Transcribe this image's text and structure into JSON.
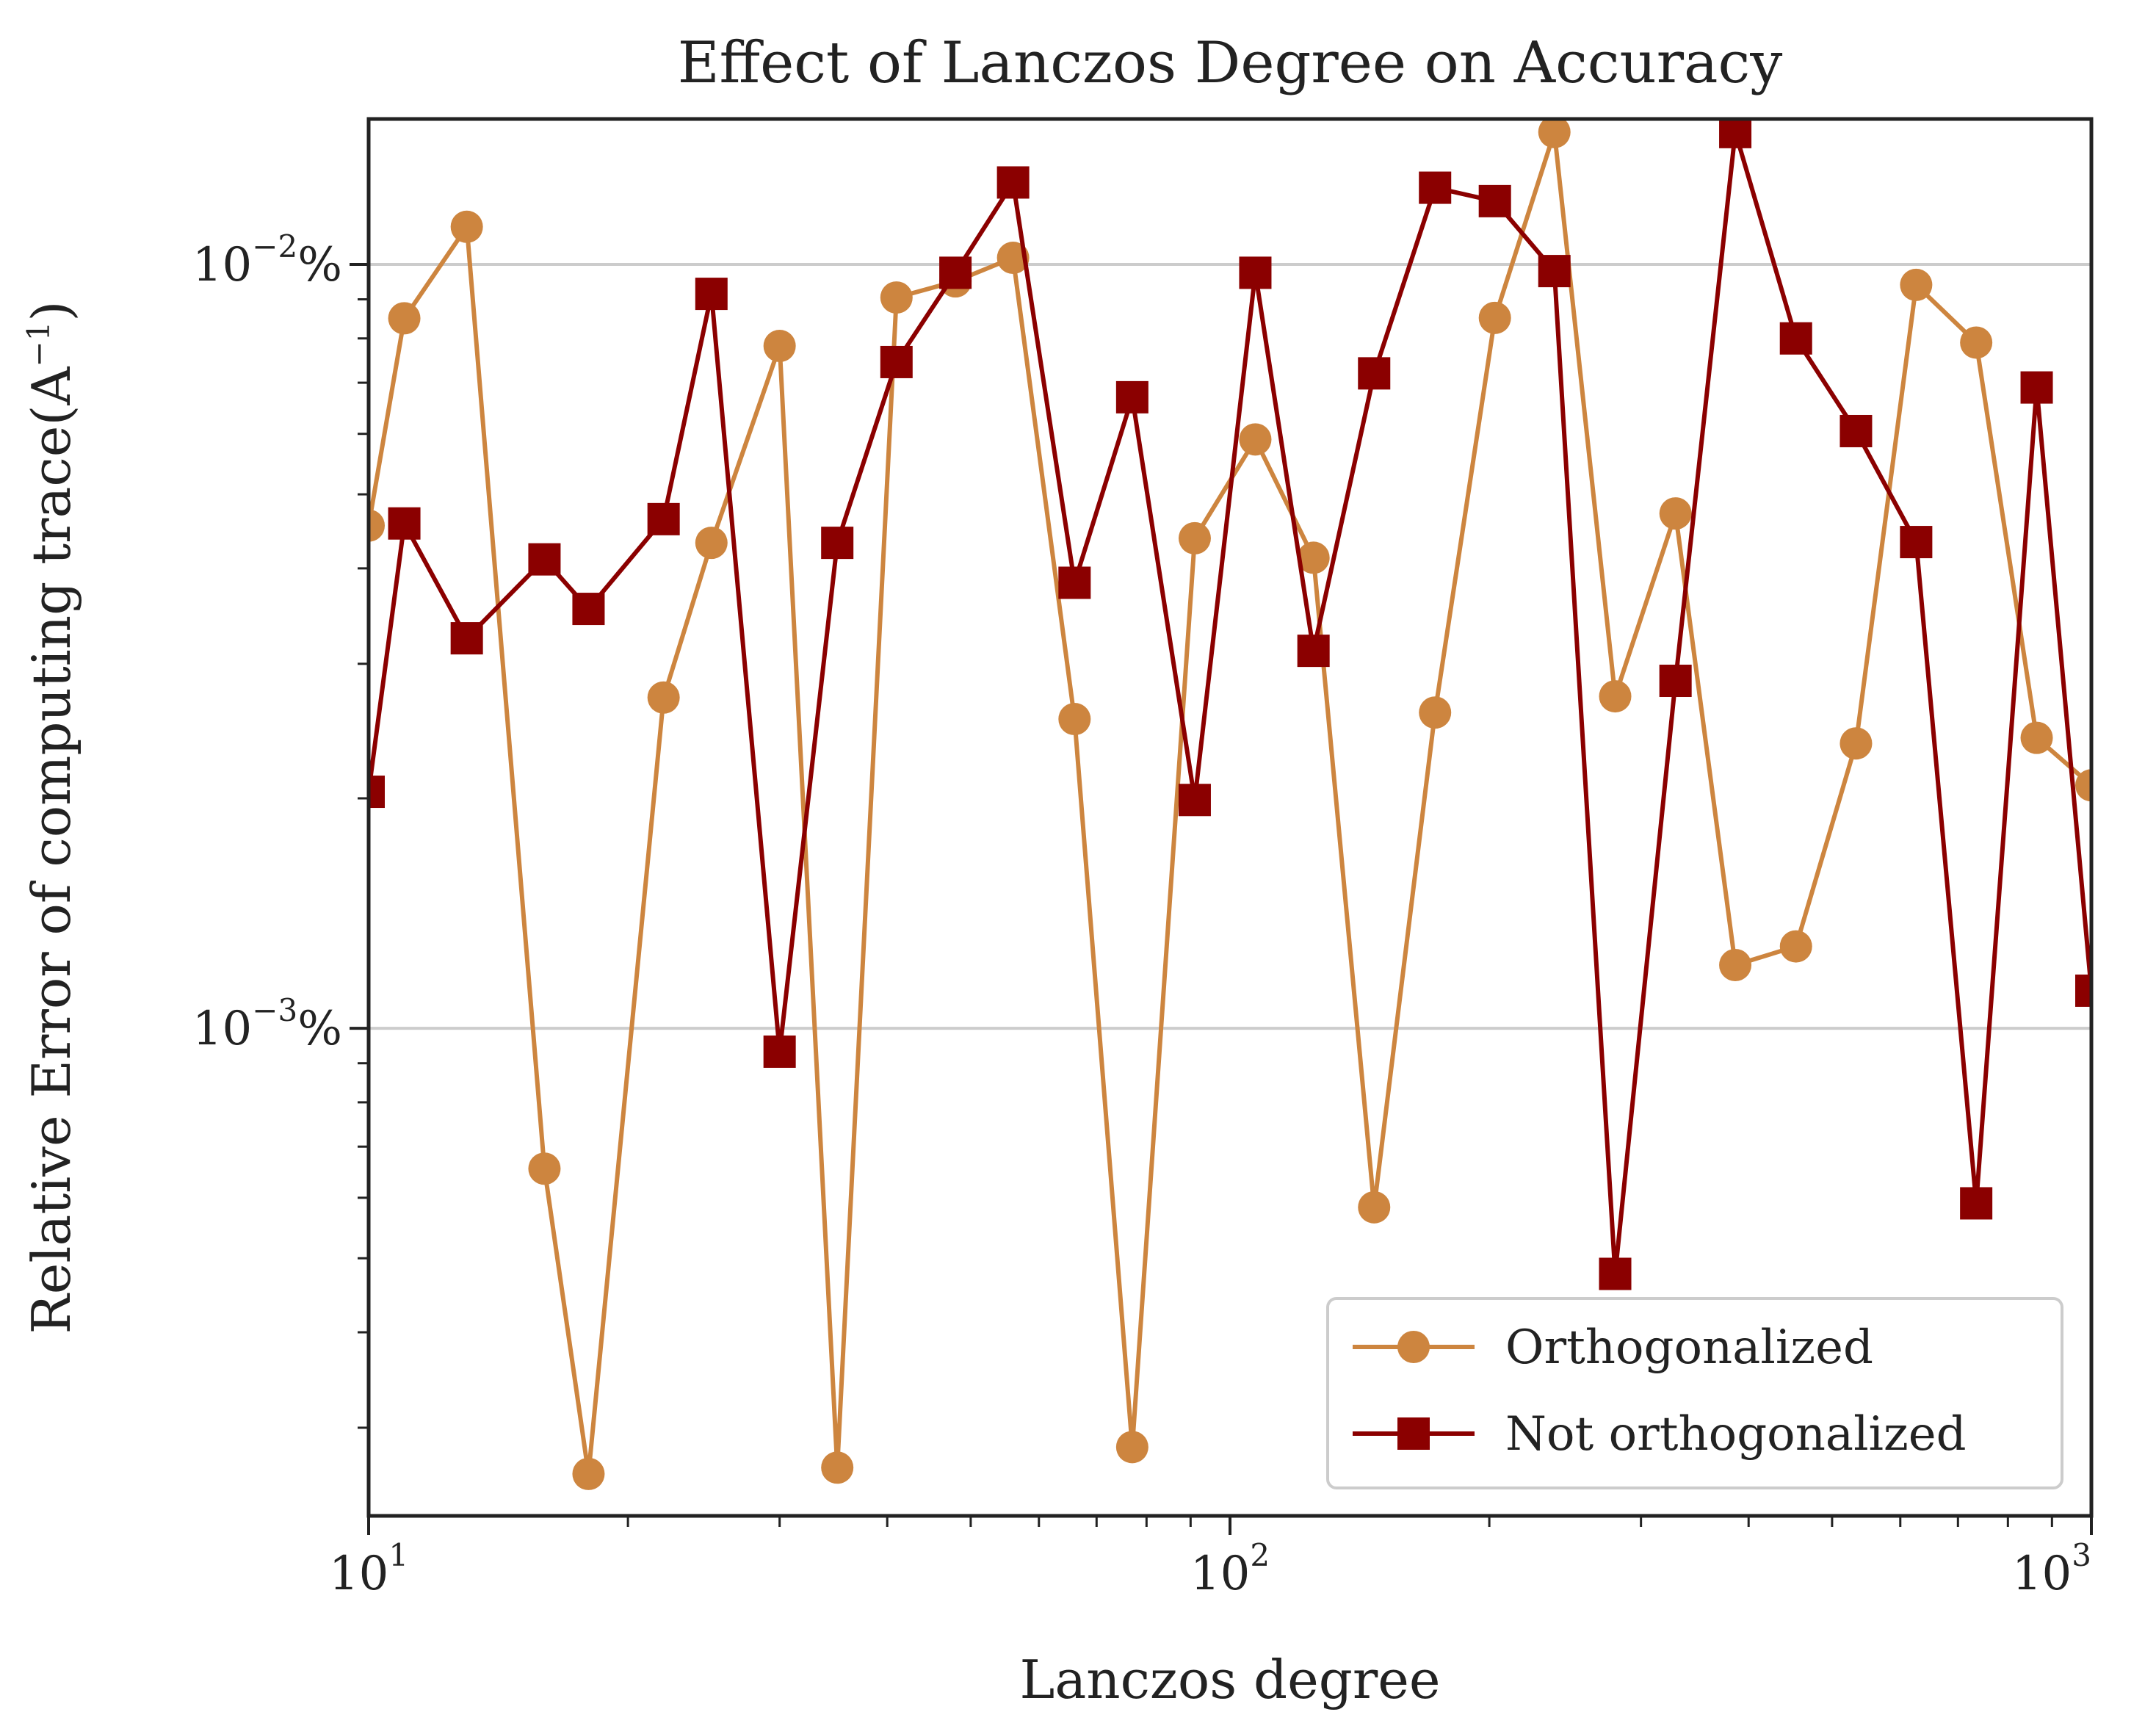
{
  "chart_data": {
    "type": "line",
    "title": "Effect of Lanczos Degree on Accuracy",
    "xlabel": "Lanczos degree",
    "ylabel": "Relative Error of computing trace(A",
    "ylabel_sup": "−1",
    "ylabel_close": ")",
    "xscale": "log",
    "yscale": "log",
    "xlim": [
      10,
      1000
    ],
    "ylim": [
      0.00023,
      0.0155
    ],
    "grid": "y-major",
    "legend_position": "lower-right",
    "x_ticks": [
      {
        "value": 10,
        "base": "10",
        "exp": "1"
      },
      {
        "value": 100,
        "base": "10",
        "exp": "2"
      },
      {
        "value": 1000,
        "base": "10",
        "exp": "3"
      }
    ],
    "y_ticks": [
      {
        "value": 0.001,
        "base": "10",
        "exp": "−3",
        "suffix": "%"
      },
      {
        "value": 0.01,
        "base": "10",
        "exp": "−2",
        "suffix": "%"
      }
    ],
    "x": [
      10,
      11,
      13,
      16,
      18,
      22,
      25,
      30,
      35,
      41,
      48,
      56,
      66,
      77,
      91,
      107,
      125,
      147,
      173,
      203,
      238,
      280,
      329,
      386,
      454,
      533,
      626,
      735,
      864,
      1000
    ],
    "series": [
      {
        "name": "Orthogonalized",
        "color": "#cd853f",
        "marker": "circle",
        "values": [
          0.00455,
          0.0085,
          0.0112,
          0.000655,
          0.000261,
          0.00271,
          0.00432,
          0.00782,
          0.000266,
          0.00905,
          0.0095,
          0.0102,
          0.00254,
          0.000283,
          0.00438,
          0.0059,
          0.00413,
          0.000583,
          0.00259,
          0.00851,
          0.0149,
          0.00272,
          0.00472,
          0.00121,
          0.00128,
          0.00236,
          0.0094,
          0.0079,
          0.0024,
          0.00208
        ]
      },
      {
        "name": "Not orthogonalized",
        "color": "#8b0000",
        "marker": "square",
        "values": [
          0.00204,
          0.00458,
          0.00324,
          0.00411,
          0.00354,
          0.00464,
          0.00915,
          0.000932,
          0.00432,
          0.00745,
          0.00975,
          0.0128,
          0.00383,
          0.0067,
          0.00199,
          0.00975,
          0.00312,
          0.0072,
          0.0126,
          0.0121,
          0.0098,
          0.000477,
          0.00285,
          0.0149,
          0.008,
          0.00605,
          0.00433,
          0.00059,
          0.0069,
          0.00112
        ]
      }
    ]
  }
}
